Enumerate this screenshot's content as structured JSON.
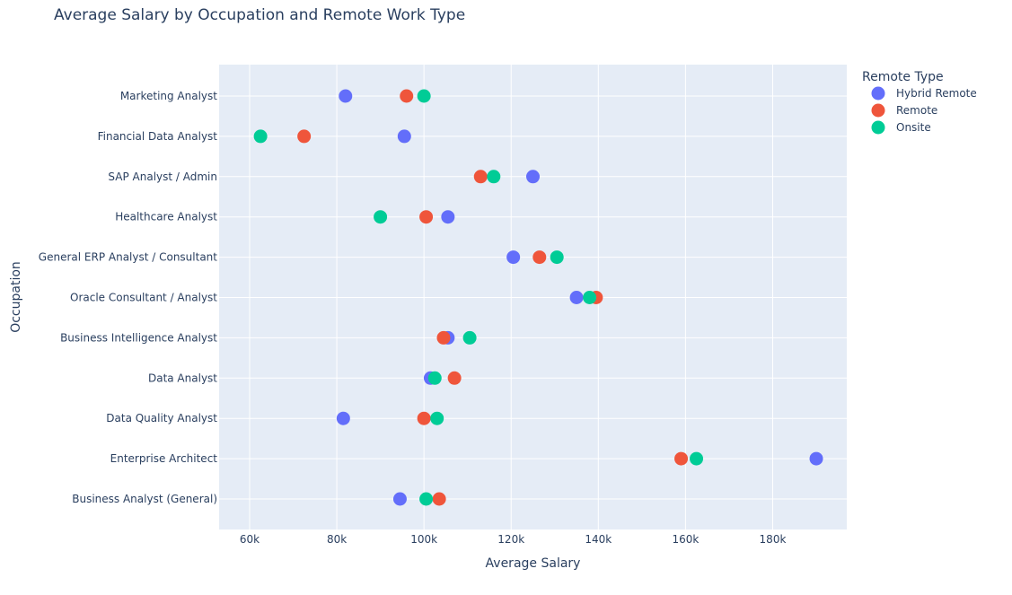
{
  "chart_data": {
    "type": "scatter",
    "title": "Average Salary by Occupation and Remote Work Type",
    "xlabel": "Average Salary",
    "ylabel": "Occupation",
    "xlim": [
      53000,
      197000
    ],
    "xticks": [
      60000,
      80000,
      100000,
      120000,
      140000,
      160000,
      180000
    ],
    "xtick_labels": [
      "60k",
      "80k",
      "100k",
      "120k",
      "140k",
      "160k",
      "180k"
    ],
    "grid": true,
    "legend_position": "top-right",
    "legend_title": "Remote Type",
    "categories": [
      "Marketing Analyst",
      "Financial Data Analyst",
      "SAP Analyst / Admin",
      "Healthcare Analyst",
      "General ERP Analyst / Consultant",
      "Oracle Consultant / Analyst",
      "Business Intelligence Analyst",
      "Data Analyst",
      "Data Quality Analyst",
      "Enterprise Architect",
      "Business Analyst (General)"
    ],
    "series": [
      {
        "name": "Hybrid Remote",
        "color": "#636efa",
        "values": [
          82000,
          95500,
          125000,
          105500,
          120500,
          135000,
          105500,
          101500,
          81500,
          190000,
          94500
        ]
      },
      {
        "name": "Remote",
        "color": "#ef553b",
        "values": [
          96000,
          72500,
          113000,
          100500,
          126500,
          139500,
          104500,
          107000,
          100000,
          159000,
          103500
        ]
      },
      {
        "name": "Onsite",
        "color": "#00cc96",
        "values": [
          100000,
          62500,
          116000,
          90000,
          130500,
          138000,
          110500,
          102500,
          103000,
          162500,
          100500
        ]
      }
    ]
  }
}
